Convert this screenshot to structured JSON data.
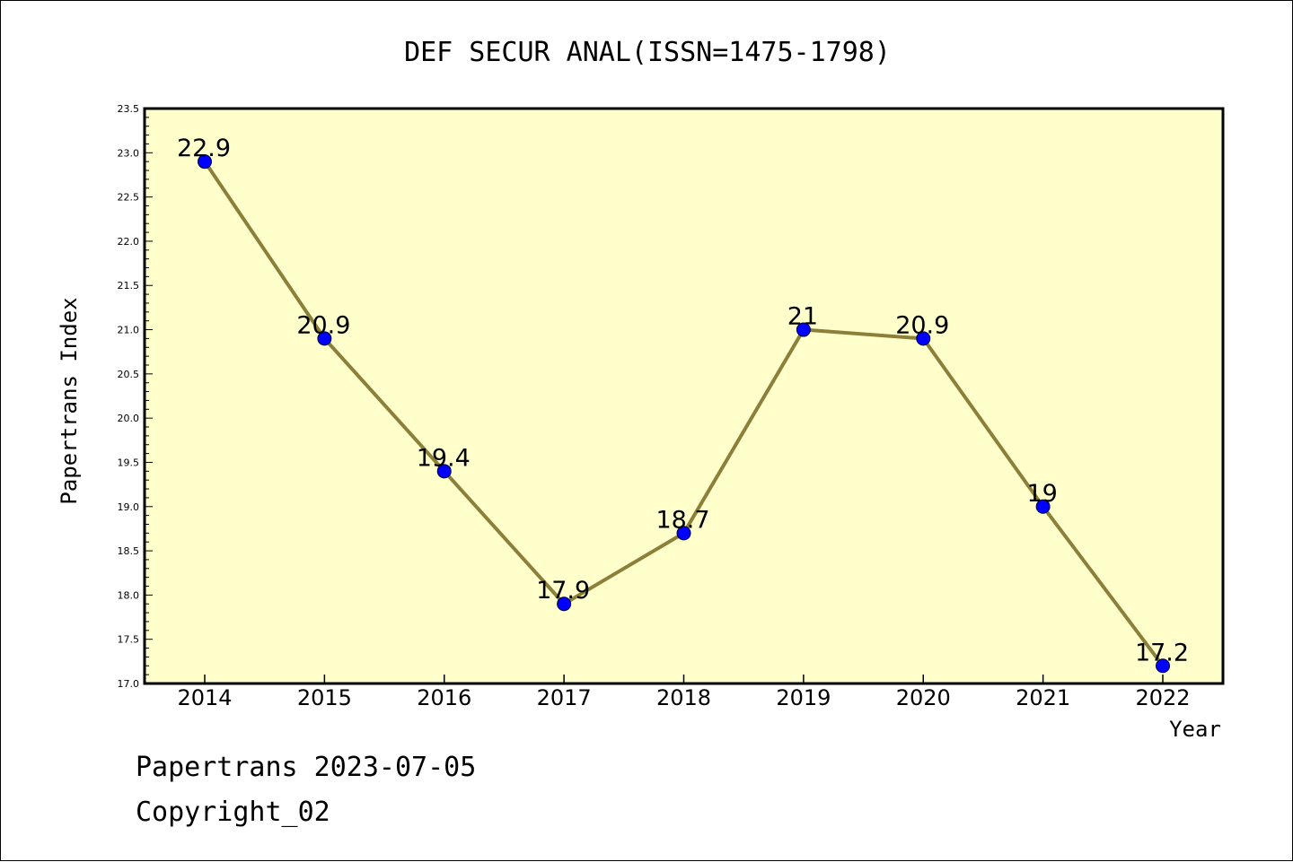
{
  "colors": {
    "plot_background": "#ffffcc",
    "line": "#8c7f3a",
    "marker": "#0000ff",
    "axis": "#000000"
  },
  "chart_data": {
    "type": "line",
    "title": "DEF SECUR ANAL(ISSN=1475-1798)",
    "xlabel": "Year",
    "ylabel": "Papertrans Index",
    "ylim": [
      17.0,
      23.5
    ],
    "ytick_step": 0.5,
    "yticks": [
      "17.0",
      "17.5",
      "18.0",
      "18.5",
      "19.0",
      "19.5",
      "20.0",
      "20.5",
      "21.0",
      "21.5",
      "22.0",
      "22.5",
      "23.0",
      "23.5"
    ],
    "grid": false,
    "x": [
      "2014",
      "2015",
      "2016",
      "2017",
      "2018",
      "2019",
      "2020",
      "2021",
      "2022"
    ],
    "values": [
      22.9,
      20.9,
      19.4,
      17.9,
      18.7,
      21.0,
      20.9,
      19.0,
      17.2
    ],
    "data_labels": [
      "22.9",
      "20.9",
      "19.4",
      "17.9",
      "18.7",
      "21",
      "20.9",
      "19",
      "17.2"
    ]
  },
  "footer": {
    "line1": "Papertrans 2023-07-05",
    "line2": "Copyright_02"
  }
}
